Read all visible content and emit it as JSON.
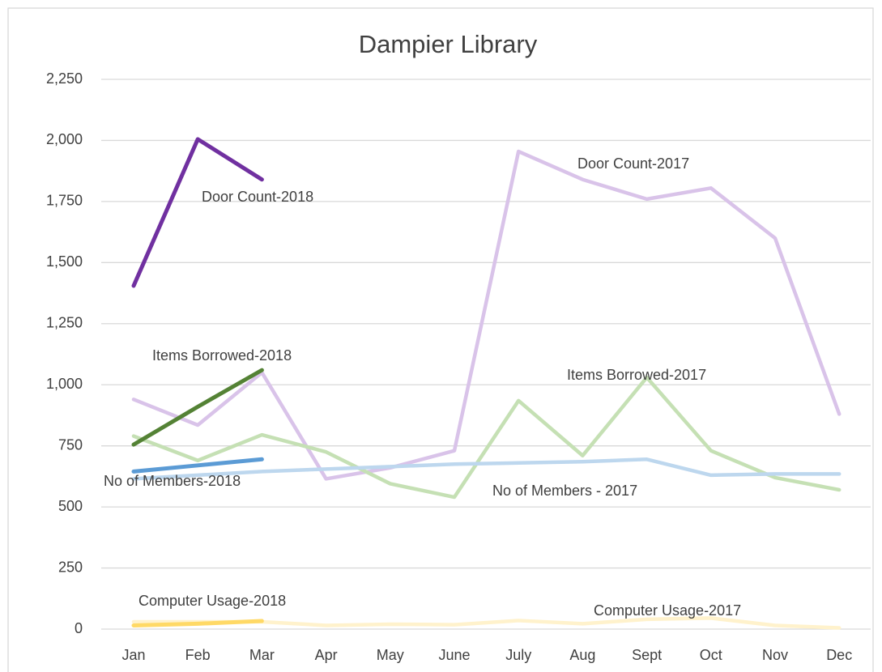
{
  "chart_data": {
    "type": "line",
    "title": "Dampier Library",
    "categories": [
      "Jan",
      "Feb",
      "Mar",
      "Apr",
      "May",
      "June",
      "July",
      "Aug",
      "Sept",
      "Oct",
      "Nov",
      "Dec"
    ],
    "ylim": [
      0,
      2250
    ],
    "yticks": [
      0,
      250,
      500,
      750,
      {
        "value": 1000,
        "label": "1,000"
      },
      {
        "value": 1250,
        "label": "1,250"
      },
      {
        "value": 1500,
        "label": "1,500"
      },
      {
        "value": 1750,
        "label": "1,750"
      },
      {
        "value": 2000,
        "label": "2,000"
      },
      {
        "value": 2250,
        "label": "2,250"
      }
    ],
    "grid": true,
    "series": [
      {
        "name": "Door Count-2017",
        "color": "#d9c3e9",
        "values": [
          940,
          835,
          1050,
          615,
          660,
          730,
          1955,
          1840,
          1760,
          1805,
          1600,
          880
        ]
      },
      {
        "name": "Door Count-2018",
        "color": "#7030a0",
        "values": [
          1405,
          2005,
          1840,
          null,
          null,
          null,
          null,
          null,
          null,
          null,
          null,
          null
        ]
      },
      {
        "name": "Items Borrowed-2017",
        "color": "#c5e0b4",
        "values": [
          790,
          690,
          795,
          725,
          595,
          540,
          935,
          710,
          1030,
          730,
          620,
          570
        ]
      },
      {
        "name": "Items Borrowed-2018",
        "color": "#548235",
        "values": [
          755,
          910,
          1060,
          null,
          null,
          null,
          null,
          null,
          null,
          null,
          null,
          null
        ]
      },
      {
        "name": "No of Members - 2017",
        "color": "#bdd7ee",
        "values": [
          615,
          630,
          645,
          655,
          665,
          675,
          680,
          685,
          695,
          630,
          635,
          635
        ]
      },
      {
        "name": "No of Members-2018",
        "color": "#5b9bd5",
        "values": [
          645,
          670,
          695,
          null,
          null,
          null,
          null,
          null,
          null,
          null,
          null,
          null
        ]
      },
      {
        "name": "Computer Usage-2017",
        "color": "#fff2cc",
        "values": [
          30,
          30,
          30,
          15,
          20,
          18,
          35,
          22,
          40,
          45,
          15,
          5
        ]
      },
      {
        "name": "Computer Usage-2018",
        "color": "#ffd966",
        "values": [
          15,
          22,
          33,
          null,
          null,
          null,
          null,
          null,
          null,
          null,
          null,
          null
        ]
      }
    ]
  }
}
